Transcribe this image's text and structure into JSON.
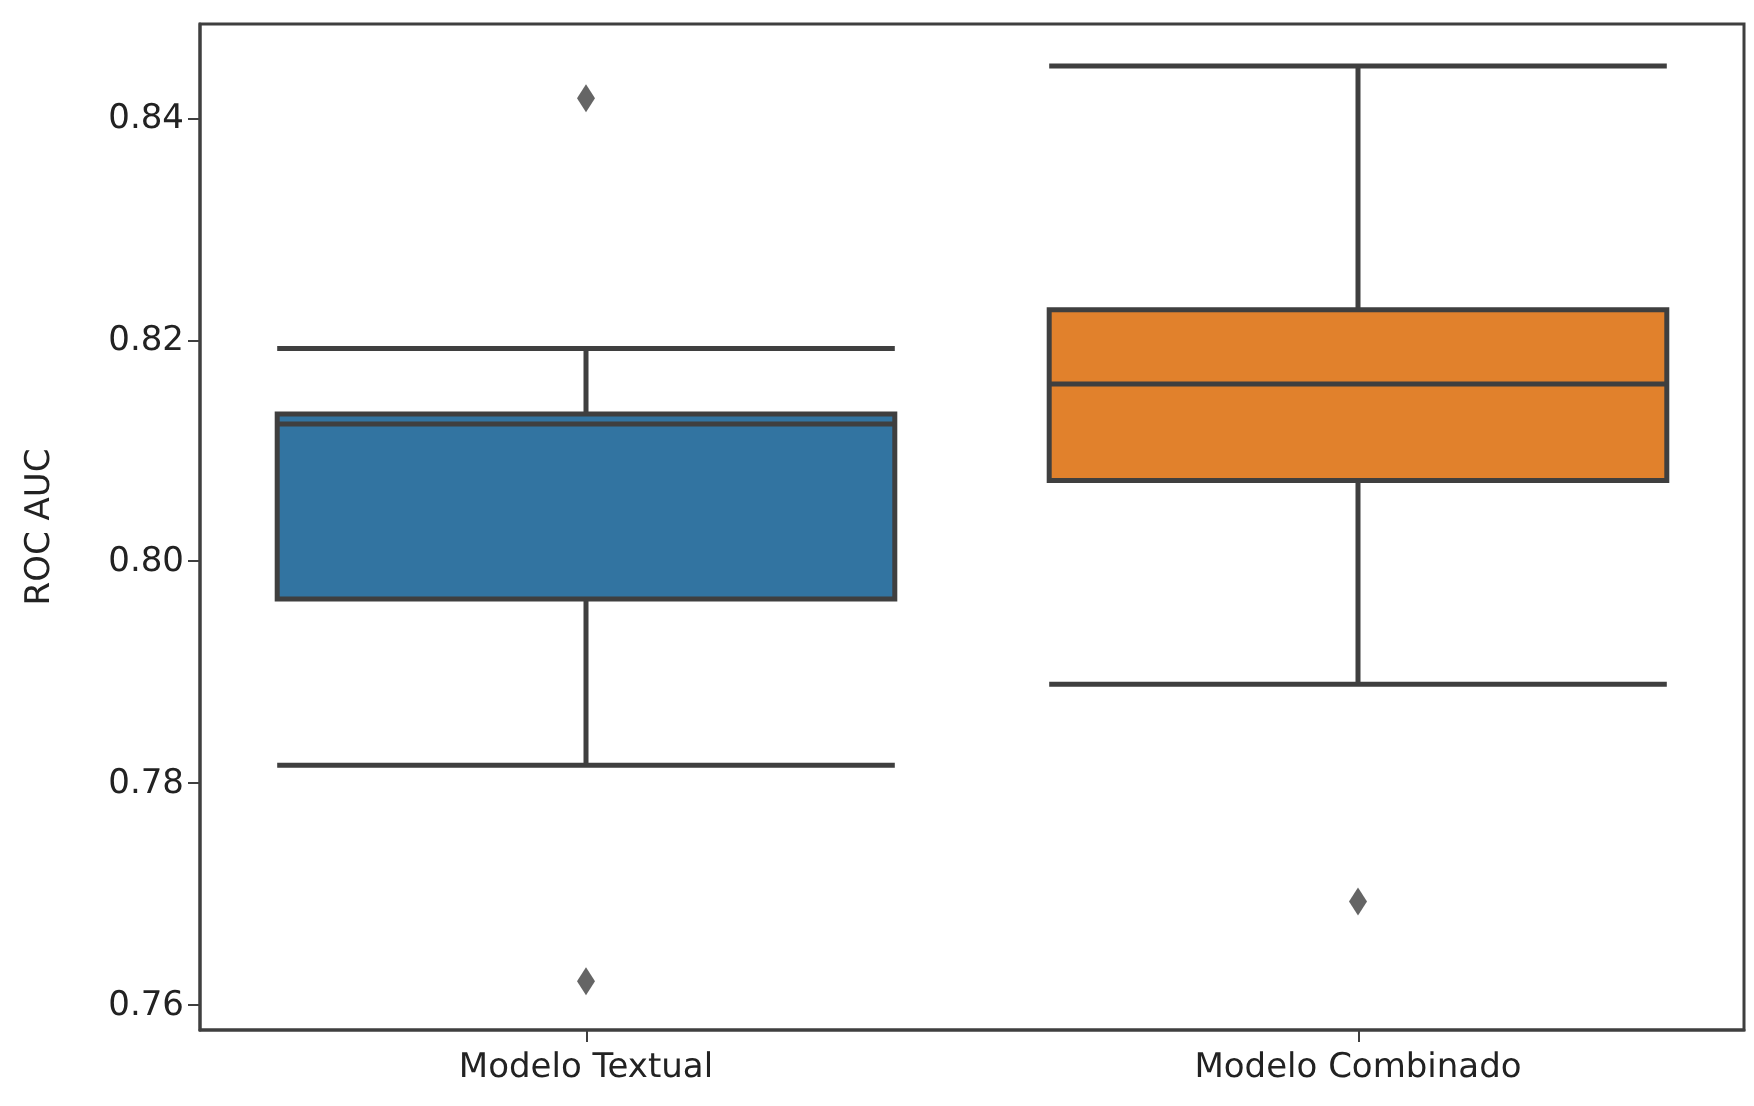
{
  "chart_data": {
    "type": "box",
    "ylabel": "ROC AUC",
    "categories": [
      "Modelo Textual",
      "Modelo Combinado"
    ],
    "colors": [
      "#3274a1",
      "#e1812c"
    ],
    "boxes": [
      {
        "low": 0.7816,
        "q1": 0.7966,
        "median": 0.8124,
        "q3": 0.8133,
        "high": 0.8192,
        "outliers": [
          0.8418,
          0.7621
        ]
      },
      {
        "low": 0.7889,
        "q1": 0.8073,
        "median": 0.816,
        "q3": 0.8227,
        "high": 0.8447,
        "outliers": [
          0.7693
        ]
      }
    ],
    "ylim": [
      0.7577,
      0.8485
    ],
    "yticks": [
      0.76,
      0.78,
      {
        "value": 0.8,
        "label": "0.80"
      },
      0.82,
      0.84
    ],
    "grid": false
  }
}
